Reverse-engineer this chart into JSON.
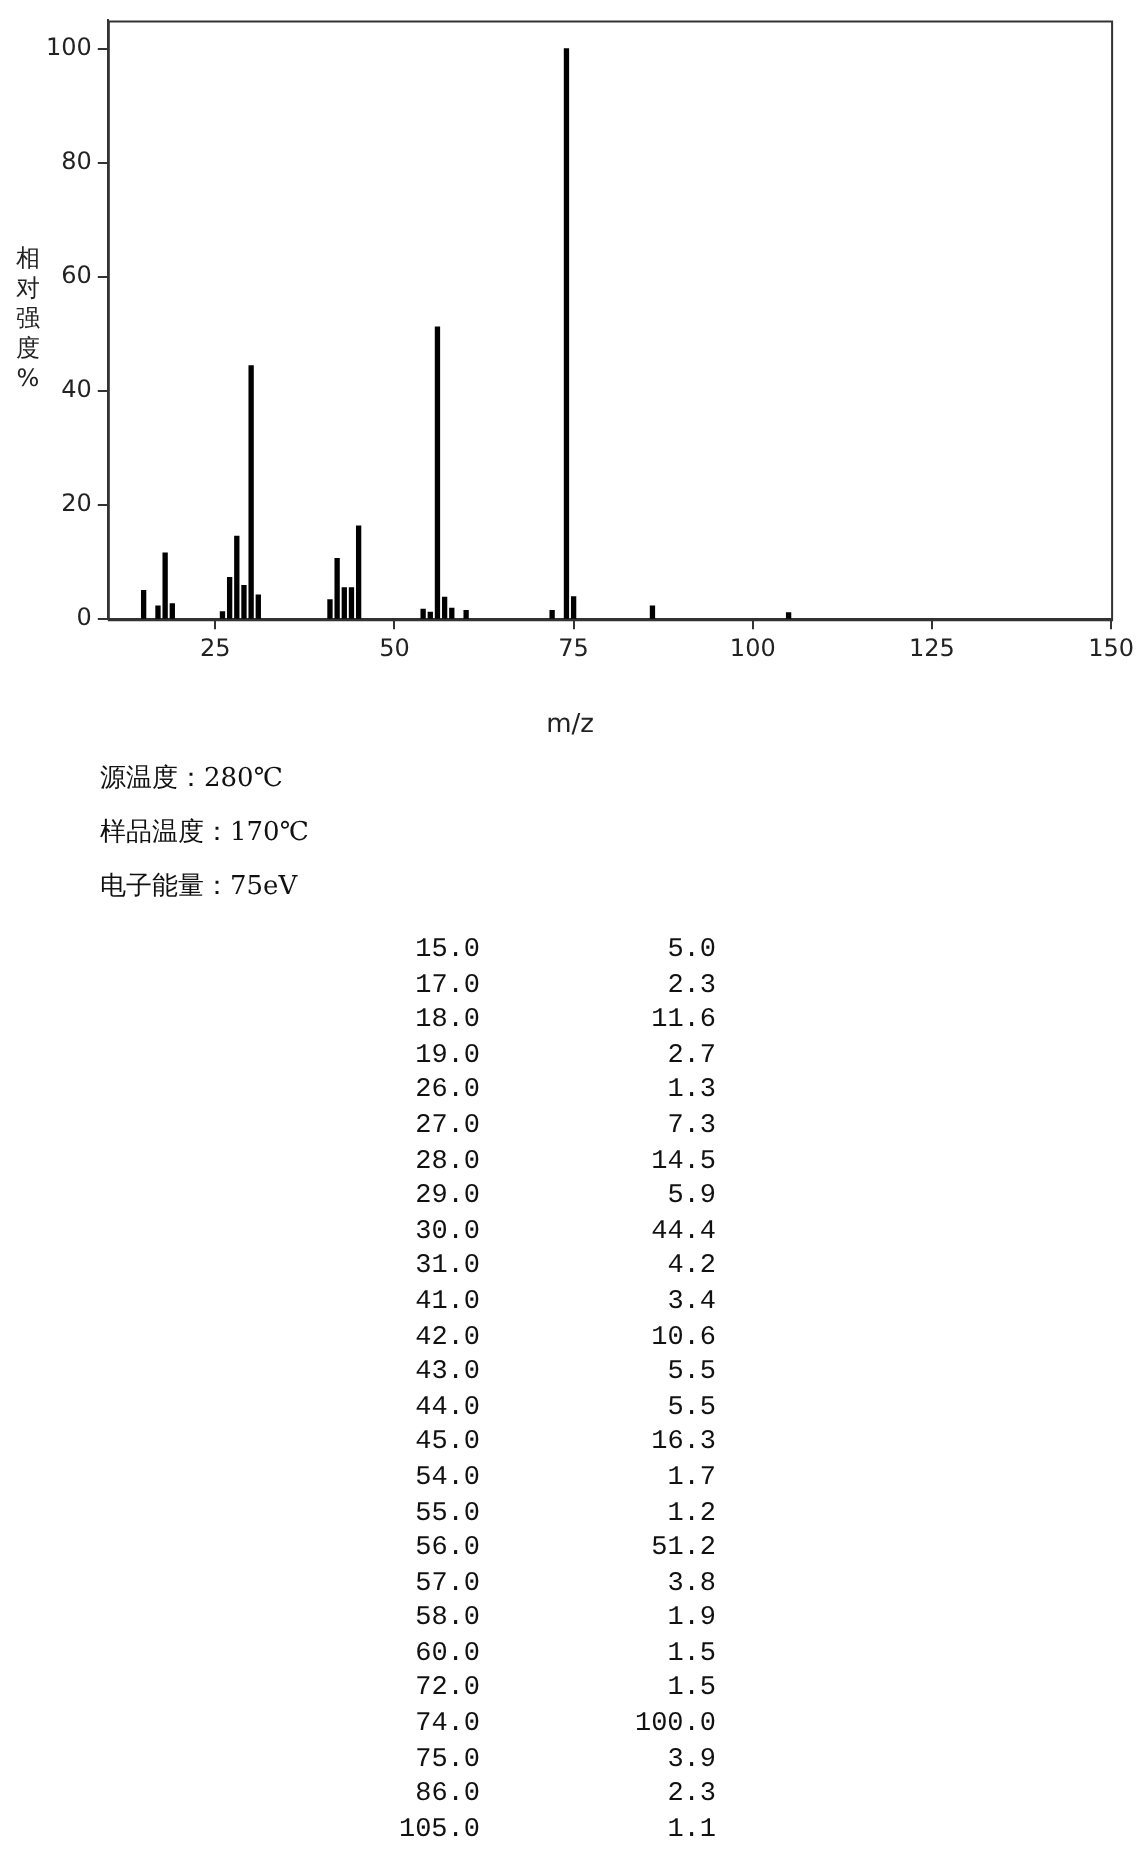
{
  "chart_data": {
    "type": "bar",
    "xlabel": "m/z",
    "ylabel": "相对强度%",
    "x": [
      15,
      17,
      18,
      19,
      26,
      27,
      28,
      29,
      30,
      31,
      41,
      42,
      43,
      44,
      45,
      54,
      55,
      56,
      57,
      58,
      60,
      72,
      74,
      75,
      86,
      105
    ],
    "values": [
      5.0,
      2.3,
      11.6,
      2.7,
      1.3,
      7.3,
      14.5,
      5.9,
      44.4,
      4.2,
      3.4,
      10.6,
      5.5,
      5.5,
      16.3,
      1.7,
      1.2,
      51.2,
      3.8,
      1.9,
      1.5,
      1.5,
      100.0,
      3.9,
      2.3,
      1.1
    ],
    "color": "#000000",
    "xlim": [
      10,
      150
    ],
    "xticks": [
      25,
      50,
      75,
      100,
      125,
      150
    ],
    "ylim": [
      0,
      105
    ],
    "yticks": [
      0,
      20,
      40,
      60,
      80,
      100
    ],
    "grid": false,
    "legend": false,
    "annotations": [
      "源温度：280℃",
      "样品温度：170℃",
      "电子能量：75eV",
      "15.0 5.0",
      "17.0 2.3",
      "18.0 11.6",
      "19.0 2.7",
      "26.0 1.3",
      "27.0 7.3",
      "28.0 14.5",
      "29.0 5.9",
      "30.0 44.4",
      "31.0 4.2",
      "41.0 3.4",
      "42.0 10.6",
      "43.0 5.5",
      "44.0 5.5",
      "45.0 16.3",
      "54.0 1.7",
      "55.0 1.2",
      "56.0 51.2",
      "57.0 3.8",
      "58.0 1.9",
      "60.0 1.5",
      "72.0 1.5",
      "74.0 100.0",
      "75.0 3.9",
      "86.0 2.3",
      "105.0 1.1"
    ]
  }
}
